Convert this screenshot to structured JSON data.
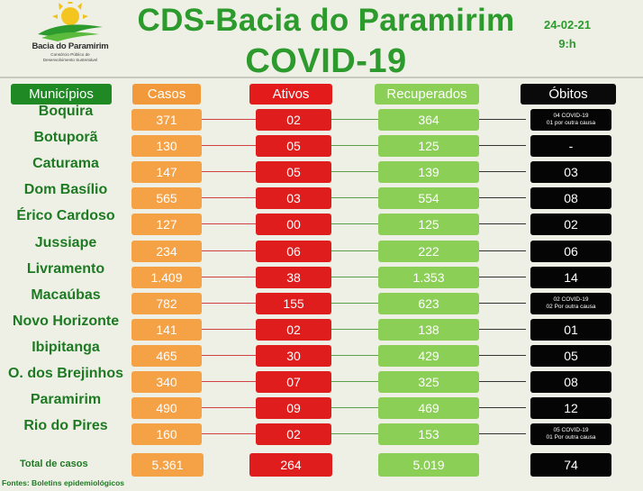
{
  "logo": {
    "name": "Bacia do Paramirim",
    "subtitle_1": "Consórcio Público de",
    "subtitle_2": "Desenvolvimento Sustentável"
  },
  "title_line1": "CDS-Bacia do Paramirim",
  "title_line2": "COVID-19",
  "date": "24-02-21",
  "time": "9:h",
  "headers": {
    "municipios": "Municípios",
    "casos": "Casos",
    "ativos": "Ativos",
    "recuperados": "Recuperados",
    "obitos": "Óbitos"
  },
  "rows": [
    {
      "municipio": "Boquira",
      "casos": "371",
      "ativos": "02",
      "recuperados": "364",
      "obitos": "",
      "obitos_l1": "04 COVID-19",
      "obitos_l2": "01 por outra causa"
    },
    {
      "municipio": "Botuporã",
      "casos": "130",
      "ativos": "05",
      "recuperados": "125",
      "obitos": "-"
    },
    {
      "municipio": "Caturama",
      "casos": "147",
      "ativos": "05",
      "recuperados": "139",
      "obitos": "03"
    },
    {
      "municipio": "Dom Basílio",
      "casos": "565",
      "ativos": "03",
      "recuperados": "554",
      "obitos": "08"
    },
    {
      "municipio": "Érico Cardoso",
      "casos": "127",
      "ativos": "00",
      "recuperados": "125",
      "obitos": "02"
    },
    {
      "municipio": "Jussiape",
      "casos": "234",
      "ativos": "06",
      "recuperados": "222",
      "obitos": "06"
    },
    {
      "municipio": "Livramento",
      "casos": "1.409",
      "ativos": "38",
      "recuperados": "1.353",
      "obitos": "14"
    },
    {
      "municipio": "Macaúbas",
      "casos": "782",
      "ativos": "155",
      "recuperados": "623",
      "obitos": "",
      "obitos_l1": "02  COVID-19",
      "obitos_l2": "02 Por outra causa"
    },
    {
      "municipio": "Novo Horizonte",
      "casos": "141",
      "ativos": "02",
      "recuperados": "138",
      "obitos": "01"
    },
    {
      "municipio": "Ibipitanga",
      "casos": "465",
      "ativos": "30",
      "recuperados": "429",
      "obitos": "05"
    },
    {
      "municipio": "O. dos Brejinhos",
      "casos": "340",
      "ativos": "07",
      "recuperados": "325",
      "obitos": "08"
    },
    {
      "municipio": "Paramirim",
      "casos": "490",
      "ativos": "09",
      "recuperados": "469",
      "obitos": "12"
    },
    {
      "municipio": "Rio do Pires",
      "casos": "160",
      "ativos": "02",
      "recuperados": "153",
      "obitos": "",
      "obitos_l1": "05  COVID-19",
      "obitos_l2": "01 Por outra causa"
    }
  ],
  "totals": {
    "label": "Total de casos",
    "casos": "5.361",
    "ativos": "264",
    "recuperados": "5.019",
    "obitos": "74"
  },
  "fonte": "Fontes: Boletins epidemiológicos",
  "colors": {
    "green_title": "#2c9a2c",
    "casos": "#f5a246",
    "ativos": "#e01d1d",
    "recuperados": "#8ccf57",
    "obitos": "#050505"
  }
}
